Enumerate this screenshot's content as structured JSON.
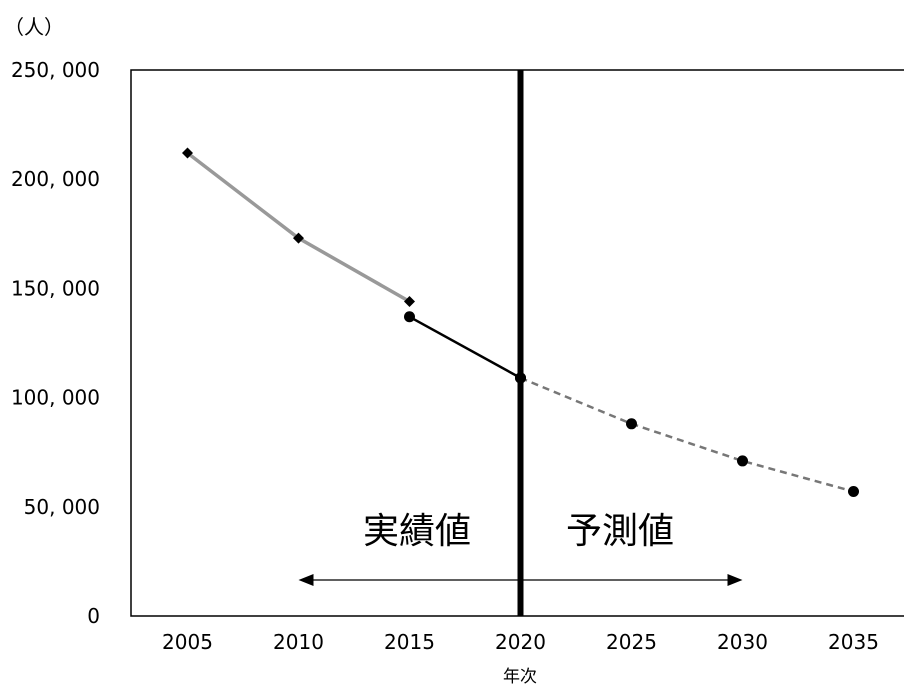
{
  "chart_data": {
    "type": "line",
    "y_unit": "（人）",
    "xlabel": "年次",
    "x": [
      2005,
      2010,
      2015,
      2020,
      2025,
      2030,
      2035
    ],
    "x_tick_labels": [
      "2005",
      "2010",
      "2015",
      "2020",
      "2025",
      "2030",
      "2035"
    ],
    "ylim": [
      0,
      250000
    ],
    "y_ticks": [
      0,
      50000,
      100000,
      150000,
      200000,
      250000
    ],
    "y_tick_labels": [
      "0",
      "50, 000",
      "100, 000",
      "150, 000",
      "200, 000",
      "250, 000"
    ],
    "grid": false,
    "series": [
      {
        "key": "past",
        "x": [
          2005,
          2010,
          2015
        ],
        "values": [
          212000,
          173000,
          144000
        ],
        "color": "#999999",
        "marker": "diamond",
        "style": "solid"
      },
      {
        "key": "actual",
        "x": [
          2015,
          2020
        ],
        "values": [
          137000,
          109000
        ],
        "color": "#000000",
        "marker": "circle",
        "style": "solid"
      },
      {
        "key": "forecast",
        "x": [
          2020,
          2025,
          2030,
          2035
        ],
        "values": [
          109000,
          88000,
          71000,
          57000
        ],
        "color": "#777777",
        "marker": "circle",
        "style": "dashed"
      }
    ],
    "divider_x": 2020,
    "annotations": {
      "actual_label": "実績値",
      "forecast_label": "予測値",
      "arrow_range": [
        2010,
        2030
      ]
    }
  }
}
